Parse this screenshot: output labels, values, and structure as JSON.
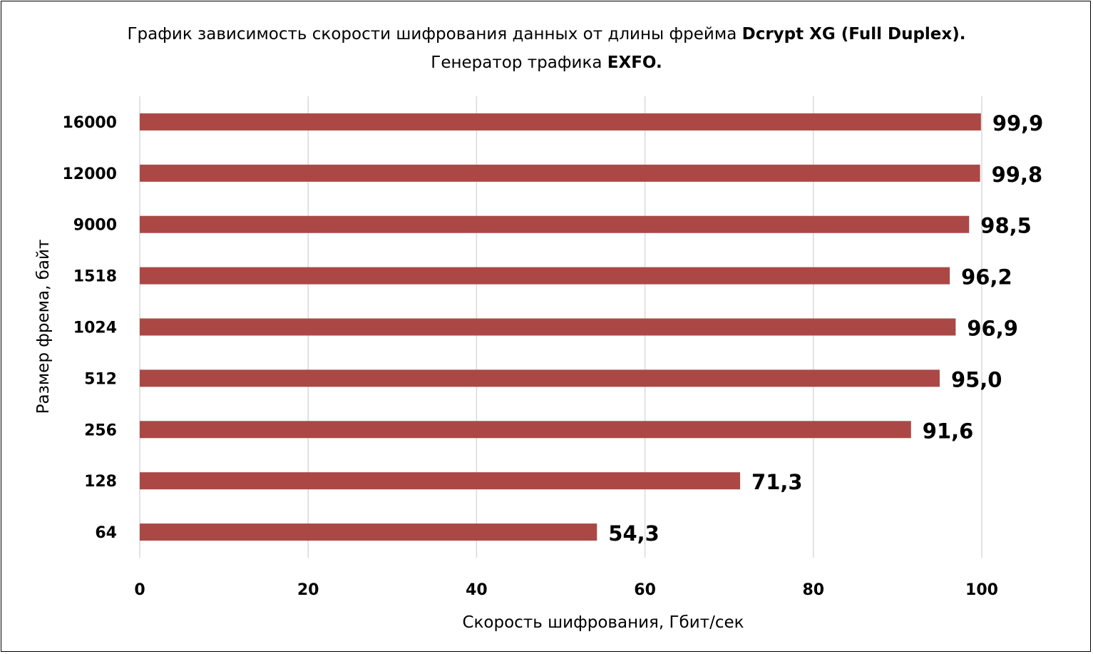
{
  "chart_data": {
    "type": "bar",
    "orientation": "horizontal",
    "title_parts": [
      {
        "text": "График зависимость скорости шифрования данных от длины фрейма ",
        "bold": false
      },
      {
        "text": "Dcrypt XG (Full Duplex).",
        "bold": true
      },
      {
        "text": " Генератор трафика ",
        "bold": false
      },
      {
        "text": "EXFO.",
        "bold": true
      }
    ],
    "xlabel": "Скорость шифрования, Гбит/сек",
    "ylabel": "Размер фрема, байт",
    "categories": [
      "16000",
      "12000",
      "9000",
      "1518",
      "1024",
      "512",
      "256",
      "128",
      "64"
    ],
    "values": [
      99.9,
      99.8,
      98.5,
      96.2,
      96.9,
      95.0,
      91.6,
      71.3,
      54.3
    ],
    "value_labels": [
      "99,9",
      "99,8",
      "98,5",
      "96,2",
      "96,9",
      "95,0",
      "91,6",
      "71,3",
      "54,3"
    ],
    "xlim": [
      0,
      100
    ],
    "xticks": [
      "0",
      "20",
      "40",
      "60",
      "80",
      "100"
    ],
    "grid": "vertical",
    "legend": "none",
    "bar_color": "#ab4846",
    "grid_color": "#d9d9d9"
  }
}
